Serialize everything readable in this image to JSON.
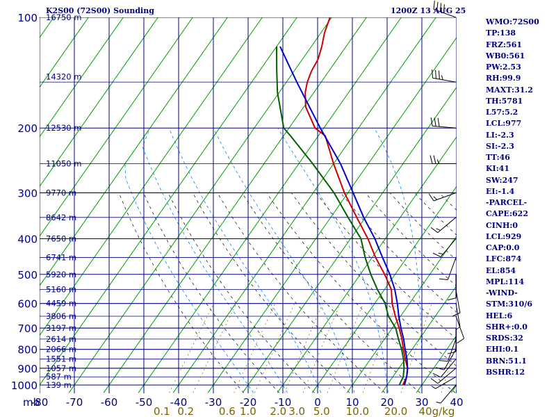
{
  "header": {
    "title": "K2S00 (72S00) Sounding",
    "time": "1200Z 13 AUG 25"
  },
  "indices": [
    "WMO:72S00",
    "TP:138",
    "FRZ:561",
    "WB0:561",
    "PW:2.53",
    "RH:99.9",
    "MAXT:31.2",
    "TH:5781",
    "L57:5.2",
    "LCL:977",
    "LI:-2.3",
    "SI:-2.3",
    "TT:46",
    "KI:41",
    "SW:247",
    "EI:-1.4",
    "-PARCEL-",
    "CAPE:622",
    "CINH:0",
    "LCL:929",
    "CAP:0.0",
    "LFC:874",
    "EL:854",
    "MPL:114",
    "-WIND-",
    "STM:310/6",
    "HEL:6",
    "SHR+:0.0",
    "SRDS:32",
    "EHI:0.1",
    "BRN:51.1",
    "BSHR:12"
  ],
  "colors": {
    "grid": "#000080",
    "isotherm": "#00a000",
    "dry_adiabat": "#000000",
    "moist_adiabat": "#0080ff",
    "mixing_ratio_label": "#7a6500",
    "temperature": "#cc0000",
    "dewpoint": "#006000",
    "parcel": "#0000cc"
  },
  "chart_data": {
    "type": "skew-t log-p",
    "xlabel": "mb",
    "temperature_axis_c": [
      -80,
      -70,
      -60,
      -50,
      -40,
      -30,
      -20,
      -10,
      0,
      10,
      20,
      30,
      40
    ],
    "temperature_tick_labels": [
      "-80",
      "-70",
      "-60",
      "-50",
      "-40",
      "-30",
      "-20",
      "-10",
      "0",
      "10",
      "20",
      "30",
      "40"
    ],
    "pressure_levels_mb": [
      100,
      200,
      300,
      400,
      500,
      600,
      700,
      800,
      900,
      1000
    ],
    "pressure_tick_labels": [
      "100",
      "200",
      "300",
      "400",
      "500",
      "600",
      "700",
      "800",
      "900",
      "1000"
    ],
    "height_labels": [
      {
        "p": 100,
        "label": "16750 m"
      },
      {
        "p": 145,
        "label": "14320 m"
      },
      {
        "p": 200,
        "label": "12530 m"
      },
      {
        "p": 250,
        "label": "11050 m"
      },
      {
        "p": 300,
        "label": "9770 m"
      },
      {
        "p": 350,
        "label": "8642 m"
      },
      {
        "p": 400,
        "label": "7650 m"
      },
      {
        "p": 450,
        "label": "6741 m"
      },
      {
        "p": 500,
        "label": "5920 m"
      },
      {
        "p": 550,
        "label": "5160 m"
      },
      {
        "p": 600,
        "label": "4459 m"
      },
      {
        "p": 650,
        "label": "3806 m"
      },
      {
        "p": 700,
        "label": "3197 m"
      },
      {
        "p": 750,
        "label": "2614 m"
      },
      {
        "p": 800,
        "label": "2066 m"
      },
      {
        "p": 850,
        "label": "1551 m"
      },
      {
        "p": 900,
        "label": "1057 m"
      },
      {
        "p": 950,
        "label": "587 m"
      },
      {
        "p": 1000,
        "label": "139 m"
      }
    ],
    "mixing_ratio_labels": [
      "0.1",
      "0.2",
      "0.6",
      "1.0",
      "2.0",
      "3.0",
      "5.0",
      "10.0",
      "20.0",
      "40g/kg"
    ],
    "mixing_ratio_values": [
      0.1,
      0.2,
      0.6,
      1.0,
      2.0,
      3.0,
      5.0,
      10.0,
      20.0,
      40.0
    ],
    "series": [
      {
        "key": "temperature",
        "points": [
          [
            100,
            -70.5
          ],
          [
            110,
            -69
          ],
          [
            120,
            -67
          ],
          [
            130,
            -65.5
          ],
          [
            140,
            -65
          ],
          [
            150,
            -64
          ],
          [
            160,
            -62.5
          ],
          [
            175,
            -59.5
          ],
          [
            200,
            -52.5
          ],
          [
            210,
            -48
          ],
          [
            250,
            -40
          ],
          [
            300,
            -31
          ],
          [
            350,
            -22.5
          ],
          [
            400,
            -15
          ],
          [
            450,
            -9
          ],
          [
            500,
            -3
          ],
          [
            550,
            2
          ],
          [
            600,
            5
          ],
          [
            650,
            8.5
          ],
          [
            700,
            12
          ],
          [
            750,
            15
          ],
          [
            800,
            17.5
          ],
          [
            850,
            20
          ],
          [
            900,
            22.5
          ],
          [
            950,
            24
          ],
          [
            1000,
            24.5
          ]
        ]
      },
      {
        "key": "dewpoint",
        "points": [
          [
            120,
            -80
          ],
          [
            140,
            -75
          ],
          [
            160,
            -70.5
          ],
          [
            200,
            -61.5
          ],
          [
            210,
            -58
          ],
          [
            250,
            -46
          ],
          [
            300,
            -34
          ],
          [
            350,
            -25
          ],
          [
            400,
            -17
          ],
          [
            450,
            -12
          ],
          [
            500,
            -7
          ],
          [
            550,
            -2
          ],
          [
            600,
            3
          ],
          [
            650,
            6.5
          ],
          [
            700,
            11
          ],
          [
            750,
            14
          ],
          [
            800,
            17
          ],
          [
            850,
            19.5
          ],
          [
            900,
            21.5
          ],
          [
            950,
            23
          ],
          [
            1000,
            23.5
          ]
        ]
      },
      {
        "key": "parcel",
        "points": [
          [
            120,
            -79
          ],
          [
            150,
            -67
          ],
          [
            200,
            -51
          ],
          [
            250,
            -38
          ],
          [
            300,
            -28.5
          ],
          [
            350,
            -20.5
          ],
          [
            400,
            -13
          ],
          [
            450,
            -7
          ],
          [
            500,
            -1.5
          ],
          [
            550,
            3
          ],
          [
            600,
            6.5
          ],
          [
            650,
            9.5
          ],
          [
            700,
            12.5
          ],
          [
            750,
            15.5
          ],
          [
            800,
            18
          ],
          [
            850,
            20.5
          ],
          [
            900,
            22.5
          ],
          [
            950,
            24
          ],
          [
            1000,
            25
          ]
        ]
      }
    ],
    "wind_barbs": [
      {
        "p": 100,
        "dir": 290,
        "spd": 40
      },
      {
        "p": 150,
        "dir": 280,
        "spd": 35
      },
      {
        "p": 200,
        "dir": 275,
        "spd": 30
      },
      {
        "p": 250,
        "dir": 270,
        "spd": 25
      },
      {
        "p": 300,
        "dir": 250,
        "spd": 15
      },
      {
        "p": 350,
        "dir": 230,
        "spd": 15
      },
      {
        "p": 400,
        "dir": 220,
        "spd": 15
      },
      {
        "p": 450,
        "dir": 200,
        "spd": 10
      },
      {
        "p": 500,
        "dir": 180,
        "spd": 10
      },
      {
        "p": 550,
        "dir": 170,
        "spd": 10
      },
      {
        "p": 600,
        "dir": 170,
        "spd": 5
      },
      {
        "p": 650,
        "dir": 160,
        "spd": 10
      },
      {
        "p": 700,
        "dir": 180,
        "spd": 10
      },
      {
        "p": 750,
        "dir": 200,
        "spd": 10
      },
      {
        "p": 800,
        "dir": 210,
        "spd": 10
      },
      {
        "p": 850,
        "dir": 220,
        "spd": 10
      },
      {
        "p": 900,
        "dir": 230,
        "spd": 10
      },
      {
        "p": 950,
        "dir": 240,
        "spd": 5
      },
      {
        "p": 1000,
        "dir": 220,
        "spd": 5
      }
    ]
  }
}
